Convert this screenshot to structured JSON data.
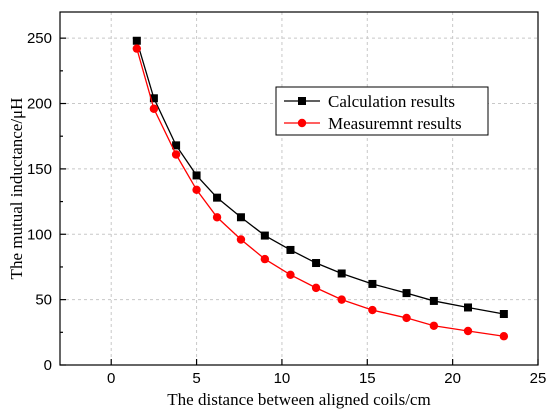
{
  "chart_data": {
    "type": "line",
    "xlabel": "The distance between aligned coils/cm",
    "ylabel": "The mutual inductance/μH",
    "xlim": [
      -3,
      25
    ],
    "ylim": [
      0,
      270
    ],
    "xticks": [
      0,
      5,
      10,
      15,
      20,
      25
    ],
    "yticks": [
      0,
      50,
      100,
      150,
      200,
      250
    ],
    "grid": true,
    "legend_position": "top-right",
    "series": [
      {
        "name": "Calculation results",
        "color": "#000000",
        "marker": "square",
        "x": [
          1.5,
          2.5,
          3.8,
          5.0,
          6.2,
          7.6,
          9.0,
          10.5,
          12.0,
          13.5,
          15.3,
          17.3,
          18.9,
          20.9,
          23.0
        ],
        "y": [
          248,
          204,
          168,
          145,
          128,
          113,
          99,
          88,
          78,
          70,
          62,
          55,
          49,
          44,
          39
        ]
      },
      {
        "name": "Measuremnt results",
        "color": "#ff0000",
        "marker": "circle",
        "x": [
          1.5,
          2.5,
          3.8,
          5.0,
          6.2,
          7.6,
          9.0,
          10.5,
          12.0,
          13.5,
          15.3,
          17.3,
          18.9,
          20.9,
          23.0
        ],
        "y": [
          242,
          196,
          161,
          134,
          113,
          96,
          81,
          69,
          59,
          50,
          42,
          36,
          30,
          26,
          22
        ]
      }
    ]
  }
}
